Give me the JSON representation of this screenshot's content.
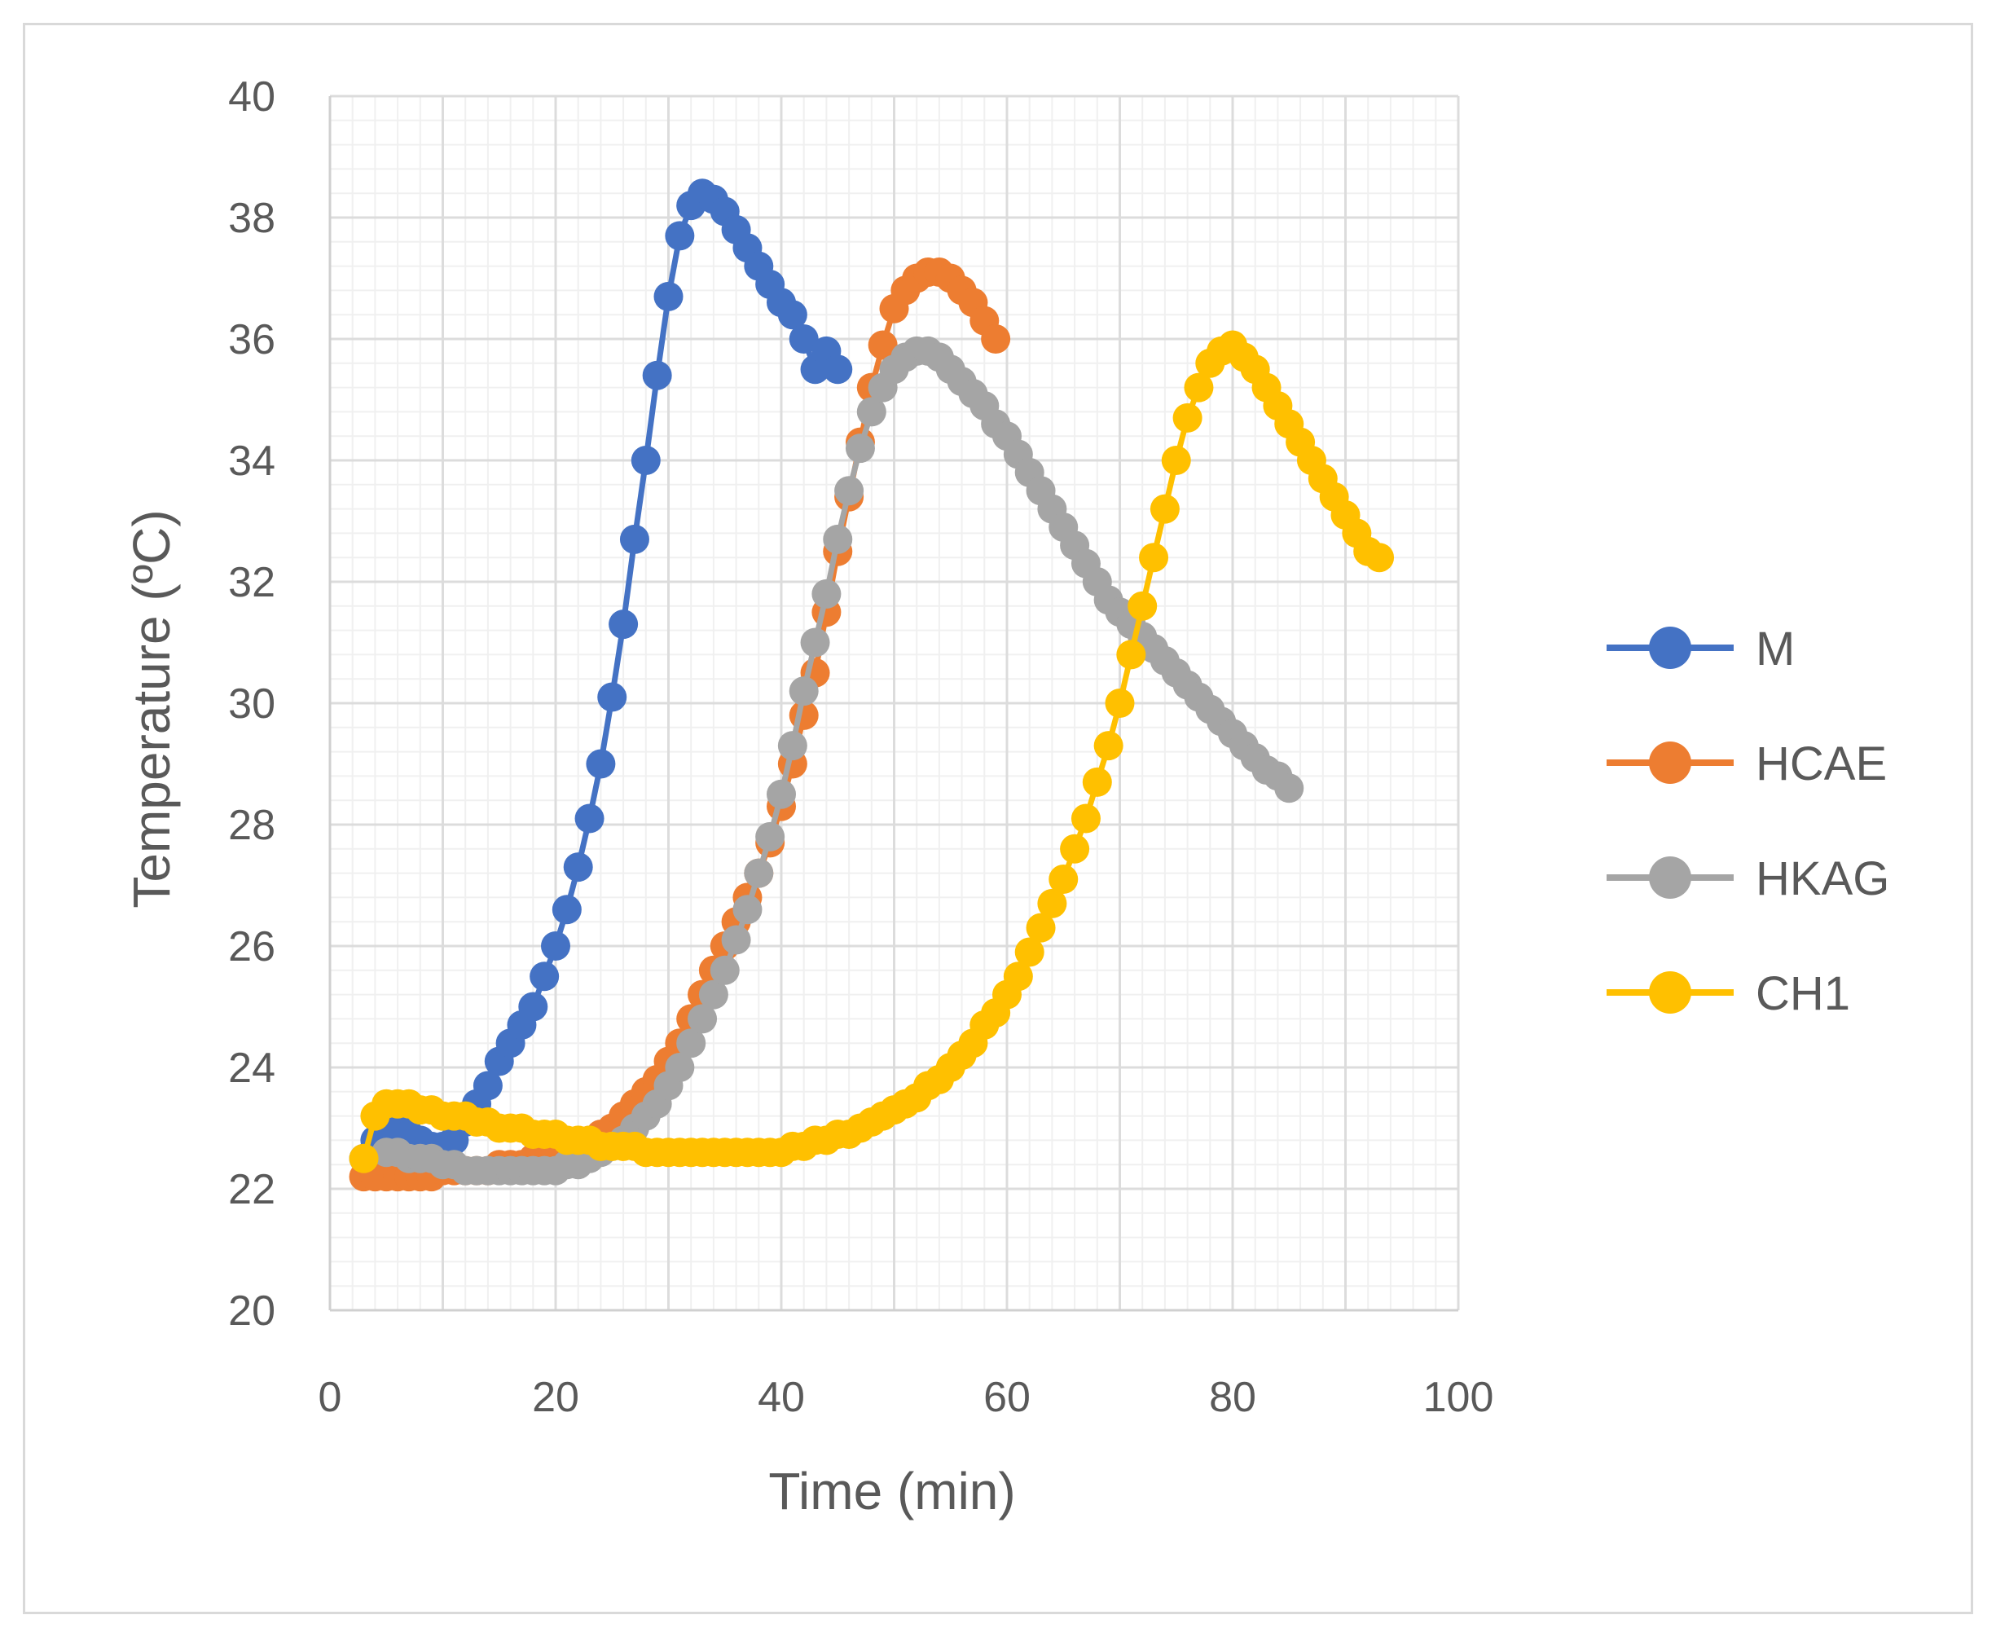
{
  "chart_data": {
    "type": "line",
    "title": "",
    "xlabel": "Time (min)",
    "ylabel": "Temperature (ºC)",
    "xlim": [
      0,
      100
    ],
    "ylim": [
      20,
      40
    ],
    "x_ticks": [
      0,
      20,
      40,
      60,
      80,
      100
    ],
    "y_ticks": [
      20,
      22,
      24,
      26,
      28,
      30,
      32,
      34,
      36,
      38,
      40
    ],
    "grid": true,
    "legend_position": "right",
    "series": [
      {
        "name": "M",
        "color": "#4472c4",
        "points": [
          [
            3,
            22.5
          ],
          [
            4,
            22.8
          ],
          [
            5,
            22.9
          ],
          [
            6,
            23.0
          ],
          [
            7,
            22.9
          ],
          [
            8,
            22.8
          ],
          [
            9,
            22.7
          ],
          [
            10,
            22.7
          ],
          [
            11,
            22.8
          ],
          [
            12,
            23.1
          ],
          [
            13,
            23.4
          ],
          [
            14,
            23.7
          ],
          [
            15,
            24.1
          ],
          [
            16,
            24.4
          ],
          [
            17,
            24.7
          ],
          [
            18,
            25.0
          ],
          [
            19,
            25.5
          ],
          [
            20,
            26.0
          ],
          [
            21,
            26.6
          ],
          [
            22,
            27.3
          ],
          [
            23,
            28.1
          ],
          [
            24,
            29.0
          ],
          [
            25,
            30.1
          ],
          [
            26,
            31.3
          ],
          [
            27,
            32.7
          ],
          [
            28,
            34.0
          ],
          [
            29,
            35.4
          ],
          [
            30,
            36.7
          ],
          [
            31,
            37.7
          ],
          [
            32,
            38.2
          ],
          [
            33,
            38.4
          ],
          [
            34,
            38.3
          ],
          [
            35,
            38.1
          ],
          [
            36,
            37.8
          ],
          [
            37,
            37.5
          ],
          [
            38,
            37.2
          ],
          [
            39,
            36.9
          ],
          [
            40,
            36.6
          ],
          [
            41,
            36.4
          ],
          [
            42,
            36.0
          ],
          [
            43,
            35.5
          ],
          [
            44,
            35.8
          ],
          [
            45,
            35.5
          ]
        ]
      },
      {
        "name": "HCAE",
        "color": "#ed7d31",
        "points": [
          [
            3,
            22.2
          ],
          [
            4,
            22.2
          ],
          [
            5,
            22.2
          ],
          [
            6,
            22.2
          ],
          [
            7,
            22.2
          ],
          [
            8,
            22.2
          ],
          [
            9,
            22.2
          ],
          [
            10,
            22.3
          ],
          [
            11,
            22.3
          ],
          [
            12,
            22.3
          ],
          [
            13,
            22.3
          ],
          [
            14,
            22.3
          ],
          [
            15,
            22.4
          ],
          [
            16,
            22.4
          ],
          [
            17,
            22.4
          ],
          [
            18,
            22.5
          ],
          [
            19,
            22.5
          ],
          [
            20,
            22.6
          ],
          [
            21,
            22.6
          ],
          [
            22,
            22.7
          ],
          [
            23,
            22.8
          ],
          [
            24,
            22.9
          ],
          [
            25,
            23.0
          ],
          [
            26,
            23.2
          ],
          [
            27,
            23.4
          ],
          [
            28,
            23.6
          ],
          [
            29,
            23.8
          ],
          [
            30,
            24.1
          ],
          [
            31,
            24.4
          ],
          [
            32,
            24.8
          ],
          [
            33,
            25.2
          ],
          [
            34,
            25.6
          ],
          [
            35,
            26.0
          ],
          [
            36,
            26.4
          ],
          [
            37,
            26.8
          ],
          [
            38,
            27.2
          ],
          [
            39,
            27.7
          ],
          [
            40,
            28.3
          ],
          [
            41,
            29.0
          ],
          [
            42,
            29.8
          ],
          [
            43,
            30.5
          ],
          [
            44,
            31.5
          ],
          [
            45,
            32.5
          ],
          [
            46,
            33.4
          ],
          [
            47,
            34.3
          ],
          [
            48,
            35.2
          ],
          [
            49,
            35.9
          ],
          [
            50,
            36.5
          ],
          [
            51,
            36.8
          ],
          [
            52,
            37.0
          ],
          [
            53,
            37.1
          ],
          [
            54,
            37.1
          ],
          [
            55,
            37.0
          ],
          [
            56,
            36.8
          ],
          [
            57,
            36.6
          ],
          [
            58,
            36.3
          ],
          [
            59,
            36.0
          ]
        ]
      },
      {
        "name": "HKAG",
        "color": "#a5a5a5",
        "points": [
          [
            5,
            22.6
          ],
          [
            6,
            22.6
          ],
          [
            7,
            22.5
          ],
          [
            8,
            22.5
          ],
          [
            9,
            22.5
          ],
          [
            10,
            22.4
          ],
          [
            11,
            22.4
          ],
          [
            12,
            22.3
          ],
          [
            13,
            22.3
          ],
          [
            14,
            22.3
          ],
          [
            15,
            22.3
          ],
          [
            16,
            22.3
          ],
          [
            17,
            22.3
          ],
          [
            18,
            22.3
          ],
          [
            19,
            22.3
          ],
          [
            20,
            22.3
          ],
          [
            21,
            22.4
          ],
          [
            22,
            22.4
          ],
          [
            23,
            22.5
          ],
          [
            24,
            22.6
          ],
          [
            25,
            22.7
          ],
          [
            26,
            22.8
          ],
          [
            27,
            23.0
          ],
          [
            28,
            23.2
          ],
          [
            29,
            23.4
          ],
          [
            30,
            23.7
          ],
          [
            31,
            24.0
          ],
          [
            32,
            24.4
          ],
          [
            33,
            24.8
          ],
          [
            34,
            25.2
          ],
          [
            35,
            25.6
          ],
          [
            36,
            26.1
          ],
          [
            37,
            26.6
          ],
          [
            38,
            27.2
          ],
          [
            39,
            27.8
          ],
          [
            40,
            28.5
          ],
          [
            41,
            29.3
          ],
          [
            42,
            30.2
          ],
          [
            43,
            31.0
          ],
          [
            44,
            31.8
          ],
          [
            45,
            32.7
          ],
          [
            46,
            33.5
          ],
          [
            47,
            34.2
          ],
          [
            48,
            34.8
          ],
          [
            49,
            35.2
          ],
          [
            50,
            35.5
          ],
          [
            51,
            35.7
          ],
          [
            52,
            35.8
          ],
          [
            53,
            35.8
          ],
          [
            54,
            35.7
          ],
          [
            55,
            35.5
          ],
          [
            56,
            35.3
          ],
          [
            57,
            35.1
          ],
          [
            58,
            34.9
          ],
          [
            59,
            34.6
          ],
          [
            60,
            34.4
          ],
          [
            61,
            34.1
          ],
          [
            62,
            33.8
          ],
          [
            63,
            33.5
          ],
          [
            64,
            33.2
          ],
          [
            65,
            32.9
          ],
          [
            66,
            32.6
          ],
          [
            67,
            32.3
          ],
          [
            68,
            32.0
          ],
          [
            69,
            31.7
          ],
          [
            70,
            31.5
          ],
          [
            71,
            31.3
          ],
          [
            72,
            31.1
          ],
          [
            73,
            30.9
          ],
          [
            74,
            30.7
          ],
          [
            75,
            30.5
          ],
          [
            76,
            30.3
          ],
          [
            77,
            30.1
          ],
          [
            78,
            29.9
          ],
          [
            79,
            29.7
          ],
          [
            80,
            29.5
          ],
          [
            81,
            29.3
          ],
          [
            82,
            29.1
          ],
          [
            83,
            28.9
          ],
          [
            84,
            28.8
          ],
          [
            85,
            28.6
          ]
        ]
      },
      {
        "name": "CH1",
        "color": "#ffc000",
        "points": [
          [
            3,
            22.5
          ],
          [
            4,
            23.2
          ],
          [
            5,
            23.4
          ],
          [
            6,
            23.4
          ],
          [
            7,
            23.4
          ],
          [
            8,
            23.3
          ],
          [
            9,
            23.3
          ],
          [
            10,
            23.2
          ],
          [
            11,
            23.2
          ],
          [
            12,
            23.2
          ],
          [
            13,
            23.1
          ],
          [
            14,
            23.1
          ],
          [
            15,
            23.0
          ],
          [
            16,
            23.0
          ],
          [
            17,
            23.0
          ],
          [
            18,
            22.9
          ],
          [
            19,
            22.9
          ],
          [
            20,
            22.9
          ],
          [
            21,
            22.8
          ],
          [
            22,
            22.8
          ],
          [
            23,
            22.8
          ],
          [
            24,
            22.7
          ],
          [
            25,
            22.7
          ],
          [
            26,
            22.7
          ],
          [
            27,
            22.7
          ],
          [
            28,
            22.6
          ],
          [
            29,
            22.6
          ],
          [
            30,
            22.6
          ],
          [
            31,
            22.6
          ],
          [
            32,
            22.6
          ],
          [
            33,
            22.6
          ],
          [
            34,
            22.6
          ],
          [
            35,
            22.6
          ],
          [
            36,
            22.6
          ],
          [
            37,
            22.6
          ],
          [
            38,
            22.6
          ],
          [
            39,
            22.6
          ],
          [
            40,
            22.6
          ],
          [
            41,
            22.7
          ],
          [
            42,
            22.7
          ],
          [
            43,
            22.8
          ],
          [
            44,
            22.8
          ],
          [
            45,
            22.9
          ],
          [
            46,
            22.9
          ],
          [
            47,
            23.0
          ],
          [
            48,
            23.1
          ],
          [
            49,
            23.2
          ],
          [
            50,
            23.3
          ],
          [
            51,
            23.4
          ],
          [
            52,
            23.5
          ],
          [
            53,
            23.7
          ],
          [
            54,
            23.8
          ],
          [
            55,
            24.0
          ],
          [
            56,
            24.2
          ],
          [
            57,
            24.4
          ],
          [
            58,
            24.7
          ],
          [
            59,
            24.9
          ],
          [
            60,
            25.2
          ],
          [
            61,
            25.5
          ],
          [
            62,
            25.9
          ],
          [
            63,
            26.3
          ],
          [
            64,
            26.7
          ],
          [
            65,
            27.1
          ],
          [
            66,
            27.6
          ],
          [
            67,
            28.1
          ],
          [
            68,
            28.7
          ],
          [
            69,
            29.3
          ],
          [
            70,
            30.0
          ],
          [
            71,
            30.8
          ],
          [
            72,
            31.6
          ],
          [
            73,
            32.4
          ],
          [
            74,
            33.2
          ],
          [
            75,
            34.0
          ],
          [
            76,
            34.7
          ],
          [
            77,
            35.2
          ],
          [
            78,
            35.6
          ],
          [
            79,
            35.8
          ],
          [
            80,
            35.9
          ],
          [
            81,
            35.7
          ],
          [
            82,
            35.5
          ],
          [
            83,
            35.2
          ],
          [
            84,
            34.9
          ],
          [
            85,
            34.6
          ],
          [
            86,
            34.3
          ],
          [
            87,
            34.0
          ],
          [
            88,
            33.7
          ],
          [
            89,
            33.4
          ],
          [
            90,
            33.1
          ],
          [
            91,
            32.8
          ],
          [
            92,
            32.5
          ],
          [
            93,
            32.4
          ]
        ]
      }
    ]
  }
}
